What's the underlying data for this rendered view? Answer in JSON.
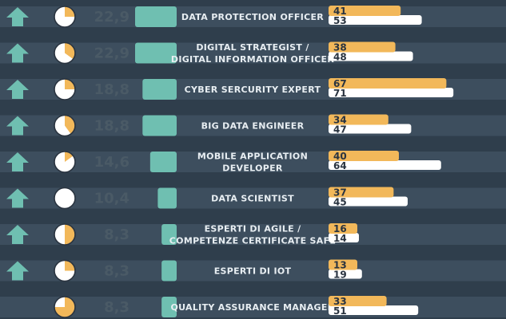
{
  "chart_data": {
    "type": "table",
    "title": "",
    "colors": {
      "background": "#2f3e4c",
      "row_band": "#3d4e5e",
      "teal": "#6fbfb1",
      "orange": "#f2b85a",
      "white": "#ffffff",
      "score_text": "#4a5a66"
    },
    "rows": [
      {
        "label": [
          "DATA PROTECTION OFFICER"
        ],
        "score": "22,9",
        "pie": 0.25,
        "trend_icon": "up-arrow-icon",
        "bar1": 41,
        "bar2": 53
      },
      {
        "label": [
          "DIGITAL STRATEGIST /",
          "DIGITAL INFORMATION OFFICER"
        ],
        "score": "22,9",
        "pie": 0.35,
        "trend_icon": "up-arrow-icon",
        "bar1": 38,
        "bar2": 48
      },
      {
        "label": [
          "CYBER SERCURITY EXPERT"
        ],
        "score": "18,8",
        "pie": 0.25,
        "trend_icon": "up-arrow-icon",
        "bar1": 67,
        "bar2": 71
      },
      {
        "label": [
          "BIG DATA ENGINEER"
        ],
        "score": "18,8",
        "pie": 0.4,
        "trend_icon": "up-arrow-icon",
        "bar1": 34,
        "bar2": 47
      },
      {
        "label": [
          "MOBILE APPLICATION",
          "DEVELOPER"
        ],
        "score": "14,6",
        "pie": 0.15,
        "trend_icon": "up-arrow-icon",
        "bar1": 40,
        "bar2": 64
      },
      {
        "label": [
          "DATA SCIENTIST"
        ],
        "score": "10,4",
        "pie": 0.0,
        "trend_icon": "up-arrow-icon",
        "bar1": 37,
        "bar2": 45
      },
      {
        "label": [
          "ESPERTI DI AGILE /",
          "COMPETENZE CERTIFICATE SAFE"
        ],
        "score": "8,3",
        "pie": 0.5,
        "trend_icon": "up-arrow-icon",
        "bar1": 16,
        "bar2": 14
      },
      {
        "label": [
          "ESPERTI DI IOT"
        ],
        "score": "8,3",
        "pie": 0.25,
        "trend_icon": "up-arrow-icon",
        "bar1": 13,
        "bar2": 19
      },
      {
        "label": [
          "QUALITY ASSURANCE MANAGER"
        ],
        "score": "8,3",
        "pie": 0.75,
        "trend_icon": "",
        "bar1": 33,
        "bar2": 51
      }
    ],
    "score_bar_max": 22.9,
    "bar_max": 80
  }
}
